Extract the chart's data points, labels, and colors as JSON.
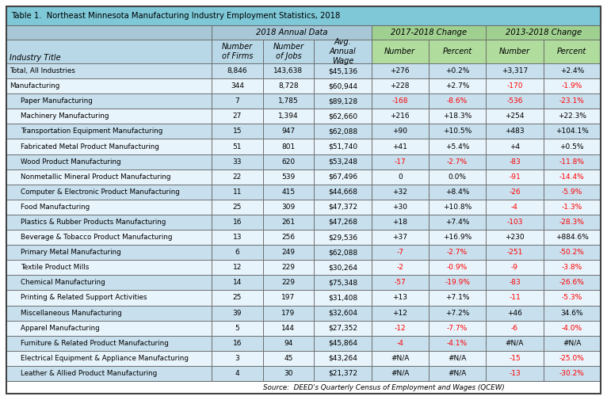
{
  "title": "Table 1.  Northeast Minnesota Manufacturing Industry Employment Statistics, 2018",
  "title_bg": "#7EC8D8",
  "annual_header_bg": "#A8C8D8",
  "change1_header_bg": "#A0D090",
  "change2_header_bg": "#A0D090",
  "col_header_bg_annual": "#B8D8E8",
  "col_header_bg_change": "#B0DC9E",
  "row_bg_even": "#C8E0EE",
  "row_bg_odd": "#E8F4FB",
  "col_headers": [
    "Industry Title",
    "Number\nof Firms",
    "Number\nof Jobs",
    "Avg.\nAnnual\nWage",
    "Number",
    "Percent",
    "Number",
    "Percent"
  ],
  "rows": [
    [
      "Total, All Industries",
      "8,846",
      "143,638",
      "$45,136",
      "+276",
      "+0.2%",
      "+3,317",
      "+2.4%"
    ],
    [
      "Manufacturing",
      "344",
      "8,728",
      "$60,944",
      "+228",
      "+2.7%",
      "-170",
      "-1.9%"
    ],
    [
      "    Paper Manufacturing",
      "7",
      "1,785",
      "$89,128",
      "-168",
      "-8.6%",
      "-536",
      "-23.1%"
    ],
    [
      "    Machinery Manufacturing",
      "27",
      "1,394",
      "$62,660",
      "+216",
      "+18.3%",
      "+254",
      "+22.3%"
    ],
    [
      "    Transportation Equipment Manufacturing",
      "15",
      "947",
      "$62,088",
      "+90",
      "+10.5%",
      "+483",
      "+104.1%"
    ],
    [
      "    Fabricated Metal Product Manufacturing",
      "51",
      "801",
      "$51,740",
      "+41",
      "+5.4%",
      "+4",
      "+0.5%"
    ],
    [
      "    Wood Product Manufacturing",
      "33",
      "620",
      "$53,248",
      "-17",
      "-2.7%",
      "-83",
      "-11.8%"
    ],
    [
      "    Nonmetallic Mineral Product Manufacturing",
      "22",
      "539",
      "$67,496",
      "0",
      "0.0%",
      "-91",
      "-14.4%"
    ],
    [
      "    Computer & Electronic Product Manufacturing",
      "11",
      "415",
      "$44,668",
      "+32",
      "+8.4%",
      "-26",
      "-5.9%"
    ],
    [
      "    Food Manufacturing",
      "25",
      "309",
      "$47,372",
      "+30",
      "+10.8%",
      "-4",
      "-1.3%"
    ],
    [
      "    Plastics & Rubber Products Manufacturing",
      "16",
      "261",
      "$47,268",
      "+18",
      "+7.4%",
      "-103",
      "-28.3%"
    ],
    [
      "    Beverage & Tobacco Product Manufacturing",
      "13",
      "256",
      "$29,536",
      "+37",
      "+16.9%",
      "+230",
      "+884.6%"
    ],
    [
      "    Primary Metal Manufacturing",
      "6",
      "249",
      "$62,088",
      "-7",
      "-2.7%",
      "-251",
      "-50.2%"
    ],
    [
      "    Textile Product Mills",
      "12",
      "229",
      "$30,264",
      "-2",
      "-0.9%",
      "-9",
      "-3.8%"
    ],
    [
      "    Chemical Manufacturing",
      "14",
      "229",
      "$75,348",
      "-57",
      "-19.9%",
      "-83",
      "-26.6%"
    ],
    [
      "    Printing & Related Support Activities",
      "25",
      "197",
      "$31,408",
      "+13",
      "+7.1%",
      "-11",
      "-5.3%"
    ],
    [
      "    Miscellaneous Manufacturing",
      "39",
      "179",
      "$32,604",
      "+12",
      "+7.2%",
      "+46",
      "34.6%"
    ],
    [
      "    Apparel Manufacturing",
      "5",
      "144",
      "$27,352",
      "-12",
      "-7.7%",
      "-6",
      "-4.0%"
    ],
    [
      "    Furniture & Related Product Manufacturing",
      "16",
      "94",
      "$45,864",
      "-4",
      "-4.1%",
      "#N/A",
      "#N/A"
    ],
    [
      "    Electrical Equipment & Appliance Manufacturing",
      "3",
      "45",
      "$43,264",
      "#N/A",
      "#N/A",
      "-15",
      "-25.0%"
    ],
    [
      "    Leather & Allied Product Manufacturing",
      "4",
      "30",
      "$21,372",
      "#N/A",
      "#N/A",
      "-13",
      "-30.2%"
    ]
  ],
  "row_text_colors": [
    [
      "black",
      "black",
      "black",
      "black",
      "black",
      "black",
      "black",
      "black"
    ],
    [
      "black",
      "black",
      "black",
      "black",
      "black",
      "black",
      "red",
      "red"
    ],
    [
      "black",
      "black",
      "black",
      "black",
      "red",
      "red",
      "red",
      "red"
    ],
    [
      "black",
      "black",
      "black",
      "black",
      "black",
      "black",
      "black",
      "black"
    ],
    [
      "black",
      "black",
      "black",
      "black",
      "black",
      "black",
      "black",
      "black"
    ],
    [
      "black",
      "black",
      "black",
      "black",
      "black",
      "black",
      "black",
      "black"
    ],
    [
      "black",
      "black",
      "black",
      "black",
      "red",
      "red",
      "red",
      "red"
    ],
    [
      "black",
      "black",
      "black",
      "black",
      "black",
      "black",
      "red",
      "red"
    ],
    [
      "black",
      "black",
      "black",
      "black",
      "black",
      "black",
      "red",
      "red"
    ],
    [
      "black",
      "black",
      "black",
      "black",
      "black",
      "black",
      "red",
      "red"
    ],
    [
      "black",
      "black",
      "black",
      "black",
      "black",
      "black",
      "red",
      "red"
    ],
    [
      "black",
      "black",
      "black",
      "black",
      "black",
      "black",
      "black",
      "black"
    ],
    [
      "black",
      "black",
      "black",
      "black",
      "red",
      "red",
      "red",
      "red"
    ],
    [
      "black",
      "black",
      "black",
      "black",
      "red",
      "red",
      "red",
      "red"
    ],
    [
      "black",
      "black",
      "black",
      "black",
      "red",
      "red",
      "red",
      "red"
    ],
    [
      "black",
      "black",
      "black",
      "black",
      "black",
      "black",
      "red",
      "red"
    ],
    [
      "black",
      "black",
      "black",
      "black",
      "black",
      "black",
      "black",
      "black"
    ],
    [
      "black",
      "black",
      "black",
      "black",
      "red",
      "red",
      "red",
      "red"
    ],
    [
      "black",
      "black",
      "black",
      "black",
      "red",
      "red",
      "black",
      "black"
    ],
    [
      "black",
      "black",
      "black",
      "black",
      "black",
      "black",
      "red",
      "red"
    ],
    [
      "black",
      "black",
      "black",
      "black",
      "black",
      "black",
      "red",
      "red"
    ]
  ],
  "source_text": "Source:  DEED's Quarterly Census of Employment and Wages (QCEW)",
  "figsize": [
    7.66,
    5.05
  ],
  "dpi": 100
}
